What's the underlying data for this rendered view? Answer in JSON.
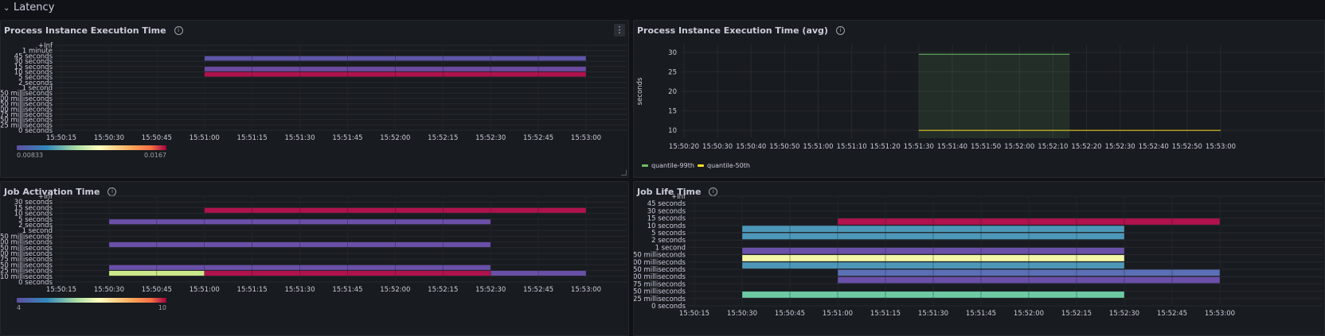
{
  "row": {
    "title": "Latency"
  },
  "panels": {
    "p1": {
      "title": "Process Instance Execution Time",
      "scale_min": "0.00833",
      "scale_max": "0.0167",
      "chart_data": {
        "type": "heatmap",
        "title": "Process Instance Execution Time",
        "y_buckets": [
          "0 seconds",
          "25 milliseconds",
          "50 milliseconds",
          "75 milliseconds",
          "100 milliseconds",
          "250 milliseconds",
          "500 milliseconds",
          "750 milliseconds",
          "1 second",
          "2 seconds",
          "5 seconds",
          "10 seconds",
          "15 seconds",
          "30 seconds",
          "45 seconds",
          "1 minute",
          "+Inf"
        ],
        "x_ticks": [
          "15:50:15",
          "15:50:30",
          "15:50:45",
          "15:51:00",
          "15:51:15",
          "15:51:30",
          "15:51:45",
          "15:52:00",
          "15:52:15",
          "15:52:30",
          "15:52:45",
          "15:53:00"
        ],
        "cells": [
          {
            "t0": "15:51:00",
            "t1": "15:53:00",
            "bucket": "5 seconds",
            "color": "#b0124e"
          },
          {
            "t0": "15:51:00",
            "t1": "15:53:00",
            "bucket": "10 seconds",
            "color": "#6d4aa0"
          },
          {
            "t0": "15:51:00",
            "t1": "15:53:00",
            "bucket": "30 seconds",
            "color": "#5d55a8"
          }
        ]
      }
    },
    "p2": {
      "title": "Process Instance Execution Time (avg)",
      "chart_data": {
        "type": "line",
        "title": "Process Instance Execution Time (avg)",
        "ylabel": "seconds",
        "ylim": [
          8,
          32
        ],
        "y_ticks": [
          10,
          15,
          20,
          25,
          30
        ],
        "x_ticks": [
          "15:50:20",
          "15:50:30",
          "15:50:40",
          "15:50:50",
          "15:51:00",
          "15:51:10",
          "15:51:20",
          "15:51:30",
          "15:51:40",
          "15:51:50",
          "15:52:00",
          "15:52:10",
          "15:52:20",
          "15:52:30",
          "15:52:40",
          "15:52:50",
          "15:53:00"
        ],
        "series": [
          {
            "name": "quantile-99th",
            "color": "#73bf69",
            "points": [
              [
                "15:51:30",
                29.5
              ],
              [
                "15:52:15",
                29.5
              ]
            ]
          },
          {
            "name": "quantile-50th",
            "color": "#fade2a",
            "points": [
              [
                "15:51:30",
                10
              ],
              [
                "15:53:00",
                10
              ]
            ]
          }
        ]
      }
    },
    "p3": {
      "title": "Job Activation Time",
      "scale_min": "4",
      "scale_max": "10",
      "chart_data": {
        "type": "heatmap",
        "title": "Job Activation Time",
        "y_buckets": [
          "0 seconds",
          "10 milliseconds",
          "25 milliseconds",
          "50 milliseconds",
          "75 milliseconds",
          "100 milliseconds",
          "250 milliseconds",
          "500 milliseconds",
          "750 milliseconds",
          "1 second",
          "2 seconds",
          "5 seconds",
          "10 seconds",
          "15 seconds",
          "30 seconds",
          "+Inf"
        ],
        "x_ticks": [
          "15:50:15",
          "15:50:30",
          "15:50:45",
          "15:51:00",
          "15:51:15",
          "15:51:30",
          "15:51:45",
          "15:52:00",
          "15:52:15",
          "15:52:30",
          "15:52:45",
          "15:53:00"
        ],
        "cells": [
          {
            "t0": "15:51:00",
            "t1": "15:53:00",
            "bucket": "10 seconds",
            "color": "#b0124e"
          },
          {
            "t0": "15:50:30",
            "t1": "15:52:30",
            "bucket": "2 seconds",
            "color": "#6a50a8"
          },
          {
            "t0": "15:50:30",
            "t1": "15:52:30",
            "bucket": "250 milliseconds",
            "color": "#6a50a8"
          },
          {
            "t0": "15:50:30",
            "t1": "15:52:30",
            "bucket": "25 milliseconds",
            "color": "#6a50a8"
          },
          {
            "t0": "15:50:30",
            "t1": "15:51:00",
            "bucket": "10 milliseconds",
            "color": "#cbe88a"
          },
          {
            "t0": "15:51:00",
            "t1": "15:52:30",
            "bucket": "10 milliseconds",
            "color": "#b0124e"
          },
          {
            "t0": "15:52:30",
            "t1": "15:53:00",
            "bucket": "10 milliseconds",
            "color": "#6a50a8"
          }
        ]
      }
    },
    "p4": {
      "title": "Job Life Time",
      "chart_data": {
        "type": "heatmap",
        "title": "Job Life Time",
        "y_buckets": [
          "0 seconds",
          "25 milliseconds",
          "50 milliseconds",
          "75 milliseconds",
          "100 milliseconds",
          "250 milliseconds",
          "500 milliseconds",
          "750 milliseconds",
          "1 second",
          "2 seconds",
          "5 seconds",
          "10 seconds",
          "15 seconds",
          "30 seconds",
          "45 seconds",
          "+Inf"
        ],
        "x_ticks": [
          "15:50:15",
          "15:50:30",
          "15:50:45",
          "15:51:00",
          "15:51:15",
          "15:51:30",
          "15:51:45",
          "15:52:00",
          "15:52:15",
          "15:52:30",
          "15:52:45",
          "15:53:00"
        ],
        "cells": [
          {
            "t0": "15:51:00",
            "t1": "15:53:00",
            "bucket": "10 seconds",
            "color": "#b0124e"
          },
          {
            "t0": "15:50:30",
            "t1": "15:52:30",
            "bucket": "5 seconds",
            "color": "#4d98b9"
          },
          {
            "t0": "15:50:30",
            "t1": "15:52:30",
            "bucket": "2 seconds",
            "color": "#4d98b9"
          },
          {
            "t0": "15:50:30",
            "t1": "15:52:30",
            "bucket": "750 milliseconds",
            "color": "#6a50a8"
          },
          {
            "t0": "15:50:30",
            "t1": "15:52:30",
            "bucket": "500 milliseconds",
            "color": "#f3f7a6"
          },
          {
            "t0": "15:50:30",
            "t1": "15:52:30",
            "bucket": "250 milliseconds",
            "color": "#4d98b9"
          },
          {
            "t0": "15:51:00",
            "t1": "15:53:00",
            "bucket": "100 milliseconds",
            "color": "#5b6fb5"
          },
          {
            "t0": "15:51:00",
            "t1": "15:53:00",
            "bucket": "75 milliseconds",
            "color": "#6a50a8"
          },
          {
            "t0": "15:50:30",
            "t1": "15:52:30",
            "bucket": "25 milliseconds",
            "color": "#6ccba3"
          }
        ]
      }
    }
  }
}
